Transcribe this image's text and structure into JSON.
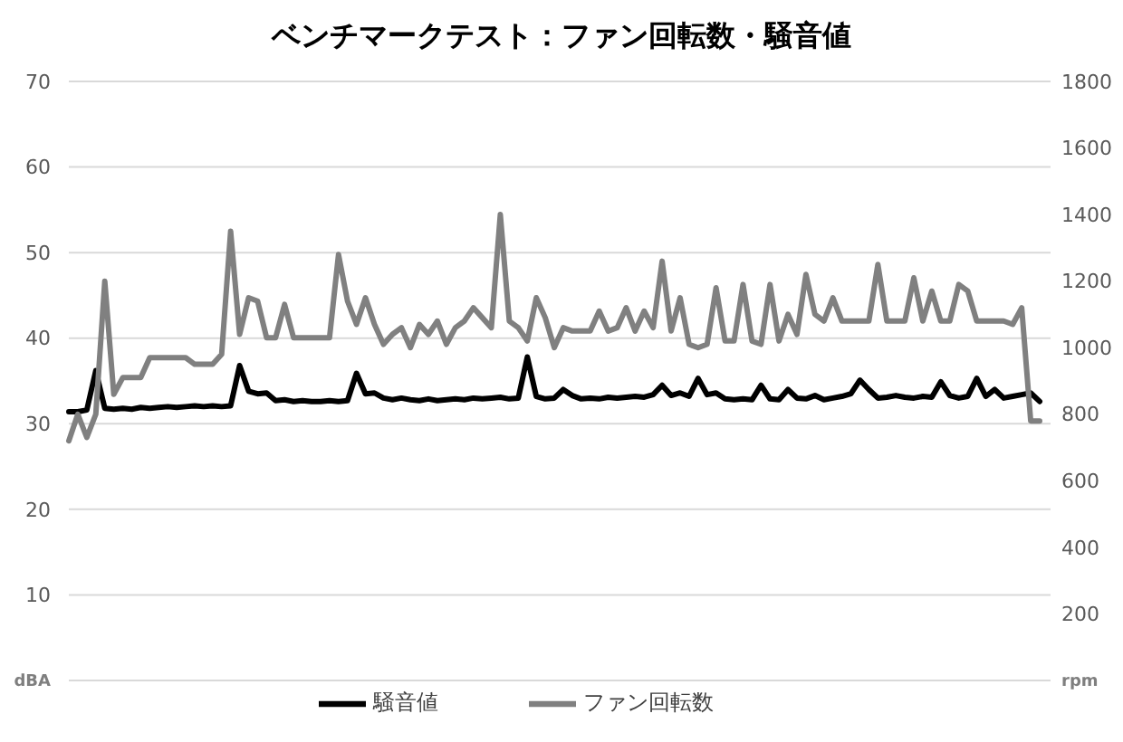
{
  "chart_data": {
    "type": "line",
    "title": "ベンチマークテスト：ファン回転数・騒音値",
    "categories": [
      null,
      null,
      null,
      null,
      null,
      null,
      null,
      null,
      null,
      null,
      null,
      null,
      null,
      null,
      null,
      null,
      null,
      null,
      null,
      null,
      null,
      null,
      null,
      null,
      null,
      null,
      null,
      null,
      null,
      null,
      null,
      null,
      null,
      null,
      null,
      null,
      null,
      null,
      null,
      null,
      null,
      null,
      null,
      null,
      null,
      null,
      null,
      null,
      null,
      null,
      null,
      null,
      null,
      null,
      null,
      null,
      null,
      null,
      null,
      null,
      null,
      null,
      null,
      null,
      null,
      null,
      null,
      null,
      null,
      null,
      null,
      null,
      null,
      null,
      null,
      null,
      null,
      null,
      null,
      null,
      null,
      null,
      null,
      null,
      null,
      null,
      null,
      null,
      null,
      null,
      null,
      null,
      null,
      null,
      null,
      null,
      null,
      null,
      null,
      null,
      null,
      null,
      null,
      null,
      null,
      null,
      null,
      null,
      null
    ],
    "series": [
      {
        "name": "騒音値",
        "color": "#000000",
        "values": [
          31.4,
          31.4,
          31.6,
          36.2,
          31.8,
          31.7,
          31.8,
          31.7,
          31.9,
          31.8,
          31.9,
          32.0,
          31.9,
          32.0,
          32.1,
          32.0,
          32.1,
          32.0,
          32.1,
          36.8,
          33.8,
          33.5,
          33.6,
          32.7,
          32.8,
          32.6,
          32.7,
          32.6,
          32.6,
          32.7,
          32.6,
          32.7,
          35.9,
          33.5,
          33.6,
          33.0,
          32.8,
          33.0,
          32.8,
          32.7,
          32.9,
          32.7,
          32.8,
          32.9,
          32.8,
          33.0,
          32.9,
          33.0,
          33.1,
          32.9,
          33.0,
          37.8,
          33.2,
          32.9,
          33.0,
          34.0,
          33.3,
          32.9,
          33.0,
          32.9,
          33.1,
          33.0,
          33.1,
          33.2,
          33.1,
          33.4,
          34.5,
          33.3,
          33.6,
          33.2,
          35.3,
          33.4,
          33.6,
          32.9,
          32.8,
          32.9,
          32.8,
          34.5,
          32.9,
          32.8,
          34.0,
          33.0,
          32.9,
          33.3,
          32.8,
          33.0,
          33.2,
          33.5,
          35.1,
          34.0,
          33.0,
          33.1,
          33.3,
          33.1,
          33.0,
          33.2,
          33.1,
          34.9,
          33.3,
          33.0,
          33.2,
          35.3,
          33.2,
          34.0,
          33.0,
          33.2,
          33.4,
          33.6,
          32.6
        ]
      },
      {
        "name": "ファン回転数",
        "color": "#808080",
        "axis": "y2",
        "values": [
          720,
          800,
          730,
          800,
          1200,
          860,
          910,
          910,
          910,
          970,
          970,
          970,
          970,
          970,
          950,
          950,
          950,
          980,
          1350,
          1040,
          1150,
          1140,
          1030,
          1030,
          1130,
          1030,
          1030,
          1030,
          1030,
          1030,
          1280,
          1140,
          1070,
          1150,
          1070,
          1010,
          1040,
          1060,
          1000,
          1070,
          1040,
          1080,
          1010,
          1060,
          1080,
          1120,
          1090,
          1060,
          1400,
          1080,
          1060,
          1020,
          1150,
          1090,
          1000,
          1060,
          1050,
          1050,
          1050,
          1110,
          1050,
          1060,
          1120,
          1050,
          1110,
          1060,
          1260,
          1050,
          1150,
          1010,
          1000,
          1010,
          1180,
          1020,
          1020,
          1190,
          1020,
          1010,
          1190,
          1020,
          1100,
          1040,
          1220,
          1100,
          1080,
          1150,
          1080,
          1080,
          1080,
          1080,
          1250,
          1080,
          1080,
          1080,
          1210,
          1080,
          1170,
          1080,
          1080,
          1190,
          1170,
          1080,
          1080,
          1080,
          1080,
          1070,
          1120,
          780,
          780
        ]
      }
    ],
    "ylim": [
      0,
      70
    ],
    "yticks": [
      {
        "value": 0,
        "label": "dBA"
      },
      10,
      20,
      30,
      40,
      50,
      60,
      70
    ],
    "y2lim": [
      0,
      1800
    ],
    "y2ticks": [
      {
        "value": 0,
        "label": "rpm"
      },
      200,
      400,
      600,
      800,
      1000,
      1200,
      1400,
      1600,
      1800
    ],
    "grid": "y",
    "legend": "bottom",
    "marker": "none",
    "line_style": "solid"
  }
}
